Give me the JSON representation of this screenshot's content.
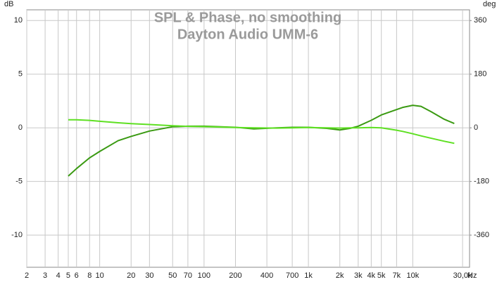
{
  "chart_data": {
    "type": "line",
    "title": "SPL & Phase, no smoothing",
    "subtitle": "Dayton Audio UMM-6",
    "y_label": "dB",
    "y2_label": "deg",
    "x_unit": "Hz",
    "x_log": true,
    "grid": true,
    "xlim": [
      2,
      35000
    ],
    "ylim": [
      -13,
      11
    ],
    "y2lim": [
      -468,
      396
    ],
    "xticks": [
      2,
      3,
      4,
      5,
      6,
      8,
      10,
      20,
      30,
      50,
      70,
      100,
      200,
      400,
      700,
      {
        "value": 1000,
        "label": "1k"
      },
      {
        "value": 2000,
        "label": "2k"
      },
      {
        "value": 3000,
        "label": "3k"
      },
      {
        "value": 4000,
        "label": "4k"
      },
      {
        "value": 5000,
        "label": "5k"
      },
      {
        "value": 7000,
        "label": "7k"
      },
      {
        "value": 10000,
        "label": "10k"
      },
      {
        "value": 30000,
        "label": "30,0k"
      }
    ],
    "yticks": [
      10,
      5,
      0,
      -5,
      -10
    ],
    "y2ticks": [
      360,
      180,
      0,
      -180,
      -360
    ],
    "x": [
      5,
      6,
      8,
      10,
      15,
      20,
      30,
      50,
      70,
      100,
      200,
      300,
      500,
      700,
      1000,
      1500,
      2000,
      2500,
      3000,
      4000,
      5000,
      7000,
      8000,
      10000,
      12000,
      15000,
      20000,
      25000
    ],
    "series": [
      {
        "color": "#3a9a12",
        "values": [
          -4.5,
          -3.8,
          -2.8,
          -2.2,
          -1.2,
          -0.8,
          -0.3,
          0.1,
          0.15,
          0.15,
          0.05,
          -0.1,
          0,
          0.05,
          0.05,
          -0.05,
          -0.2,
          -0.05,
          0.15,
          0.7,
          1.2,
          1.7,
          1.9,
          2.1,
          2.0,
          1.5,
          0.8,
          0.4
        ]
      },
      {
        "color": "#5ee022",
        "axis": "y2",
        "values": [
          27,
          27,
          25,
          22,
          17,
          14,
          11,
          7,
          5,
          4,
          1,
          0,
          -1,
          0,
          1,
          0,
          -1,
          0,
          0,
          1,
          0,
          -8,
          -12,
          -20,
          -27,
          -35,
          -45,
          -52
        ]
      }
    ]
  }
}
